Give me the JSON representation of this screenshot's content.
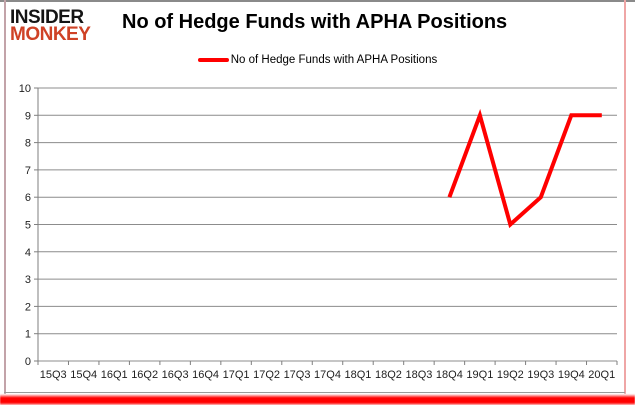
{
  "logo": {
    "line1": "INSIDER",
    "line2": "MONKEY",
    "accent_color": "#cf4226"
  },
  "title": "No of Hedge Funds with APHA Positions",
  "legend": {
    "label": "No of Hedge Funds with APHA Positions",
    "swatch_color": "#ff0000"
  },
  "chart_data": {
    "type": "line",
    "title": "No of Hedge Funds with APHA Positions",
    "categories": [
      "15Q3",
      "15Q4",
      "16Q1",
      "16Q2",
      "16Q3",
      "16Q4",
      "17Q1",
      "17Q2",
      "17Q3",
      "17Q4",
      "18Q1",
      "18Q2",
      "18Q3",
      "18Q4",
      "19Q1",
      "19Q2",
      "19Q3",
      "19Q4",
      "20Q1"
    ],
    "series": [
      {
        "name": "No of Hedge Funds with APHA Positions",
        "color": "#ff0000",
        "values": [
          null,
          null,
          null,
          null,
          null,
          null,
          null,
          null,
          null,
          null,
          null,
          null,
          null,
          6,
          9,
          5,
          6,
          9,
          9
        ]
      }
    ],
    "xlabel": "",
    "ylabel": "",
    "ylim": [
      0,
      10
    ],
    "ytick_step": 1,
    "yticks": [
      0,
      1,
      2,
      3,
      4,
      5,
      6,
      7,
      8,
      9,
      10
    ],
    "grid": true,
    "legend_position": "top-center",
    "gridline_color": "#8c8c8c",
    "axis_color": "#7f7f7f",
    "label_color": "#1f1f1f",
    "line_width": 4
  }
}
